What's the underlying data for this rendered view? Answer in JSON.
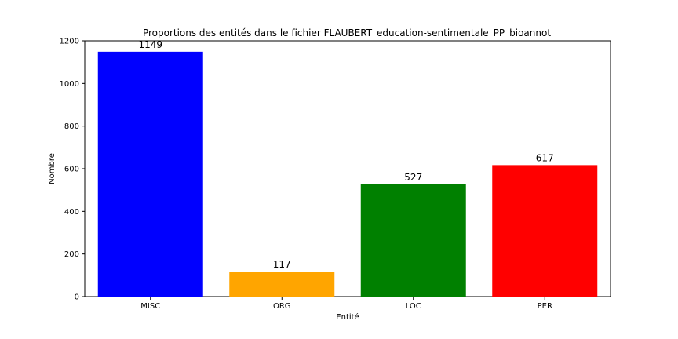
{
  "chart_data": {
    "type": "bar",
    "title": "Proportions des entités dans le fichier FLAUBERT_education-sentimentale_PP_bioannot",
    "xlabel": "Entité",
    "ylabel": "Nombre",
    "categories": [
      "MISC",
      "ORG",
      "LOC",
      "PER"
    ],
    "values": [
      1149,
      117,
      527,
      617
    ],
    "data_labels": [
      "1149",
      "117",
      "527",
      "617"
    ],
    "colors": [
      "#0000ff",
      "#ffa500",
      "#008000",
      "#ff0000"
    ],
    "ylim": [
      0,
      1200
    ],
    "yticks": [
      0,
      200,
      400,
      600,
      800,
      1000,
      1200
    ],
    "ytick_labels": [
      "0",
      "200",
      "400",
      "600",
      "800",
      "1000",
      "1200"
    ],
    "grid": false,
    "legend": "none"
  }
}
